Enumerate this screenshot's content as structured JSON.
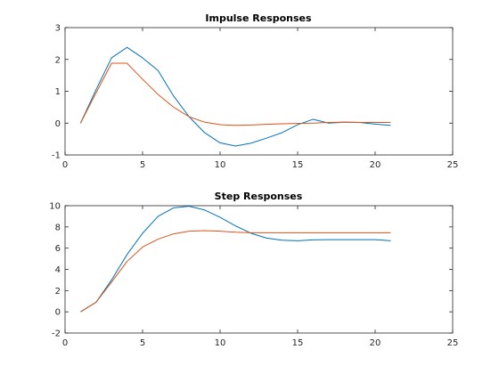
{
  "chart_data": [
    {
      "type": "line",
      "title": "Impulse Responses",
      "xlabel": "",
      "ylabel": "",
      "xlim": [
        0,
        25
      ],
      "ylim": [
        -1,
        3
      ],
      "xticks": [
        0,
        5,
        10,
        15,
        20,
        25
      ],
      "yticks": [
        -1,
        0,
        1,
        2,
        3
      ],
      "grid": false,
      "x": [
        1,
        2,
        3,
        4,
        5,
        6,
        7,
        8,
        9,
        10,
        11,
        12,
        13,
        14,
        15,
        16,
        17,
        18,
        19,
        20,
        21
      ],
      "series": [
        {
          "color": "#0072BD",
          "values": [
            0,
            1.05,
            2.05,
            2.38,
            2.05,
            1.65,
            0.85,
            0.2,
            -0.3,
            -0.62,
            -0.72,
            -0.63,
            -0.47,
            -0.3,
            -0.05,
            0.12,
            0.0,
            0.03,
            0.02,
            -0.03,
            -0.07
          ]
        },
        {
          "color": "#D95319",
          "values": [
            0,
            0.95,
            1.88,
            1.88,
            1.38,
            0.9,
            0.5,
            0.2,
            0.03,
            -0.05,
            -0.07,
            -0.06,
            -0.04,
            -0.02,
            -0.01,
            0.0,
            0.02,
            0.03,
            0.02,
            0.02,
            0.02
          ]
        }
      ]
    },
    {
      "type": "line",
      "title": "Step Responses",
      "xlabel": "",
      "ylabel": "",
      "xlim": [
        0,
        25
      ],
      "ylim": [
        -2,
        10
      ],
      "xticks": [
        0,
        5,
        10,
        15,
        20,
        25
      ],
      "yticks": [
        -2,
        0,
        2,
        4,
        6,
        8,
        10
      ],
      "grid": false,
      "x": [
        1,
        2,
        3,
        4,
        5,
        6,
        7,
        8,
        9,
        10,
        11,
        12,
        13,
        14,
        15,
        16,
        17,
        18,
        19,
        20,
        21
      ],
      "series": [
        {
          "color": "#0072BD",
          "values": [
            0,
            0.9,
            3.0,
            5.4,
            7.4,
            9.0,
            9.8,
            9.95,
            9.6,
            8.9,
            8.1,
            7.4,
            6.95,
            6.75,
            6.7,
            6.78,
            6.8,
            6.8,
            6.8,
            6.8,
            6.7
          ]
        },
        {
          "color": "#D95319",
          "values": [
            0,
            0.9,
            2.8,
            4.75,
            6.1,
            6.85,
            7.35,
            7.6,
            7.65,
            7.6,
            7.5,
            7.45,
            7.45,
            7.45,
            7.45,
            7.45,
            7.45,
            7.45,
            7.45,
            7.45,
            7.45
          ]
        }
      ]
    }
  ]
}
